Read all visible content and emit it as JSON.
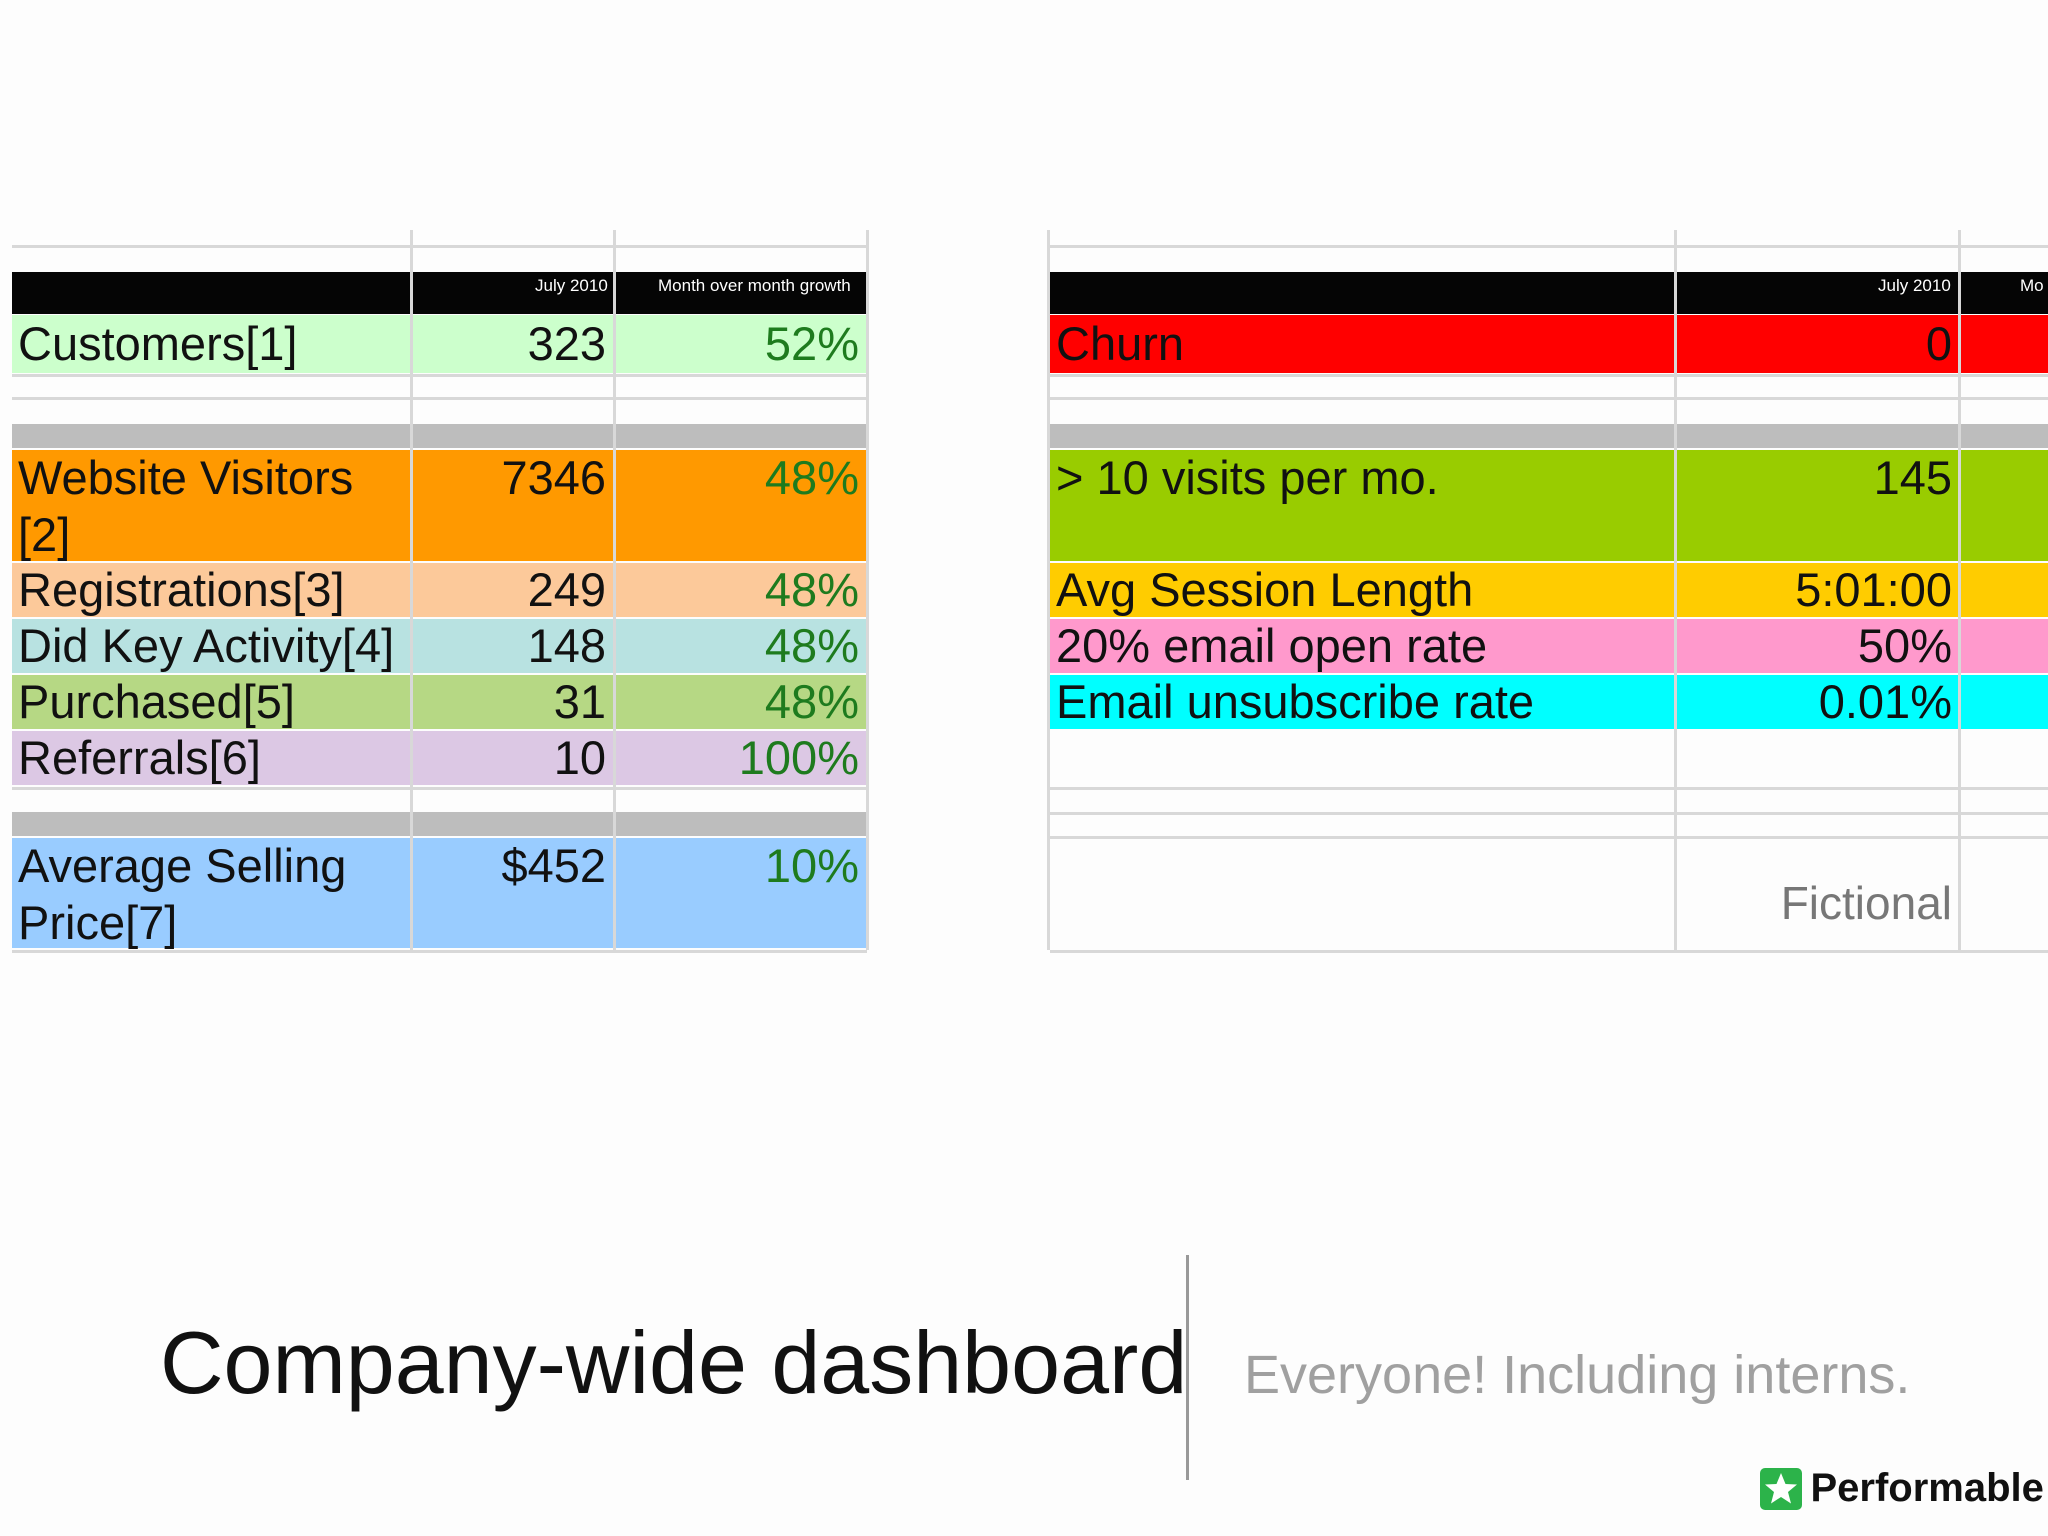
{
  "left_table": {
    "header": {
      "col2": "July 2010",
      "col3": "Month over month growth"
    },
    "rows": [
      {
        "label": "Customers[1]",
        "value": "323",
        "growth": "52%",
        "color": "#ccffcc"
      },
      {
        "label_line1": "Website Visitors",
        "label_line2": "[2]",
        "value": "7346",
        "growth": "48%",
        "color": "#ff9900"
      },
      {
        "label": "Registrations[3]",
        "value": "249",
        "growth": "48%",
        "color": "#fcc99a"
      },
      {
        "label": "Did Key Activity[4]",
        "value": "148",
        "growth": "48%",
        "color": "#b8e2e1"
      },
      {
        "label": "Purchased[5]",
        "value": "31",
        "growth": "48%",
        "color": "#b6d884"
      },
      {
        "label": "Referrals[6]",
        "value": "10",
        "growth": "100%",
        "color": "#dcc8e4"
      },
      {
        "label_line1": "Average Selling",
        "label_line2": "Price[7]",
        "value": "$452",
        "growth": "10%",
        "color": "#99ccff"
      }
    ]
  },
  "right_table": {
    "header": {
      "col2": "July 2010",
      "col3": "Mo"
    },
    "rows": [
      {
        "label": "Churn",
        "value": "0",
        "color": "#ff0000"
      },
      {
        "label": "> 10 visits per mo.",
        "value": "145",
        "color": "#99cc00"
      },
      {
        "label": "Avg Session Length",
        "value": "5:01:00",
        "color": "#ffcc00"
      },
      {
        "label": "20% email open rate",
        "value": "50%",
        "color": "#ff99cc"
      },
      {
        "label": "Email unsubscribe rate",
        "value": "0.01%",
        "color": "#00ffff"
      }
    ],
    "note": "Fictional"
  },
  "slide": {
    "title": "Company-wide dashboard",
    "subtitle": "Everyone! Including interns."
  },
  "brand": {
    "name": "Performable",
    "icon": "star-icon",
    "accent": "#2cb34a"
  }
}
